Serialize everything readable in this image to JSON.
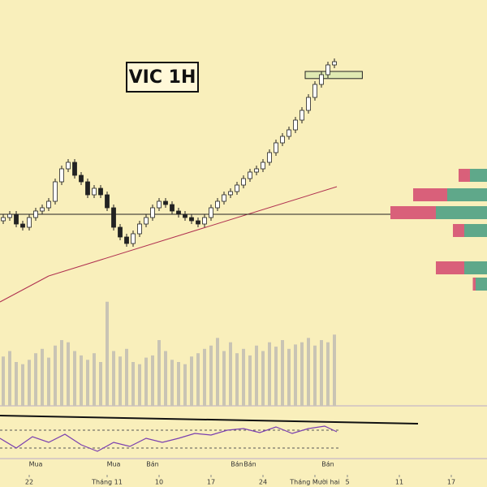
{
  "chart_data": {
    "type": "candlestick",
    "title": "VIC 1H",
    "ylim": [
      0,
      100
    ],
    "xlim": [
      -0.5,
      74.5
    ],
    "open": [
      32,
      33,
      34,
      31,
      30,
      33,
      35,
      36,
      38,
      44,
      48,
      50,
      46,
      44,
      40,
      42,
      40,
      36,
      30,
      27,
      25,
      28,
      31,
      33,
      36,
      38,
      37,
      35,
      34,
      33,
      32,
      31,
      33,
      36,
      38,
      40,
      41,
      43,
      45,
      47,
      48,
      50,
      53,
      56,
      58,
      60,
      63,
      66,
      70,
      74,
      77,
      80
    ],
    "high": [
      34,
      35,
      35,
      32,
      34,
      36,
      37,
      39,
      45,
      49,
      51,
      51,
      47,
      45,
      43,
      43,
      41,
      37,
      31,
      28,
      29,
      32,
      34,
      37,
      39,
      39,
      38,
      36,
      35,
      34,
      33,
      34,
      37,
      39,
      41,
      42,
      44,
      46,
      48,
      49,
      51,
      54,
      57,
      59,
      61,
      64,
      67,
      71,
      75,
      78,
      81,
      82
    ],
    "low": [
      31,
      32,
      30,
      29,
      29,
      32,
      34,
      35,
      37,
      43,
      47,
      45,
      43,
      39,
      39,
      39,
      35,
      29,
      26,
      24,
      24,
      27,
      30,
      32,
      35,
      36,
      34,
      33,
      32,
      31,
      30,
      30,
      32,
      35,
      37,
      39,
      40,
      42,
      44,
      46,
      47,
      49,
      52,
      55,
      57,
      59,
      62,
      65,
      69,
      73,
      76,
      79
    ],
    "close": [
      33,
      34,
      31,
      30,
      33,
      35,
      36,
      38,
      44,
      48,
      50,
      46,
      44,
      40,
      42,
      40,
      36,
      30,
      27,
      25,
      28,
      31,
      33,
      36,
      38,
      37,
      35,
      34,
      33,
      32,
      31,
      33,
      36,
      38,
      40,
      41,
      43,
      45,
      47,
      48,
      50,
      53,
      56,
      58,
      60,
      63,
      66,
      70,
      74,
      77,
      80,
      81
    ],
    "up_color": "#ffffff",
    "down_color": "#222222",
    "level": 34,
    "zone": [
      75.8,
      78
    ],
    "volume": [
      45,
      50,
      40,
      38,
      42,
      48,
      52,
      44,
      55,
      60,
      58,
      50,
      46,
      42,
      48,
      40,
      95,
      50,
      45,
      52,
      40,
      38,
      44,
      46,
      60,
      50,
      42,
      40,
      38,
      45,
      48,
      52,
      55,
      62,
      50,
      58,
      48,
      52,
      46,
      55,
      50,
      58,
      54,
      60,
      52,
      56,
      58,
      62,
      55,
      60,
      58,
      65
    ],
    "volume_color": "#c9c4b4",
    "volume_ylim": [
      0,
      100
    ],
    "profile": {
      "levels": [
        46,
        40,
        34.5,
        29,
        17.5,
        12.5
      ],
      "buy": [
        30,
        70,
        90,
        40,
        40,
        20
      ],
      "sell": [
        20,
        60,
        80,
        20,
        50,
        5
      ],
      "buy_color": "#5fa88a",
      "sell_color": "#d9607a"
    },
    "xticks": [
      {
        "value": 4,
        "label": "22"
      },
      {
        "value": 16,
        "label": "Tháng 11"
      },
      {
        "value": 24,
        "label": "10"
      },
      {
        "value": 32,
        "label": "17"
      },
      {
        "value": 40,
        "label": "24"
      },
      {
        "value": 48,
        "label": "Tháng Mười hai"
      },
      {
        "value": 53,
        "label": "5"
      },
      {
        "value": 61,
        "label": "11"
      },
      {
        "value": 69,
        "label": "17"
      }
    ],
    "annotations": [
      {
        "text": "Mua",
        "index": 5
      },
      {
        "text": "Mua",
        "index": 17
      },
      {
        "text": "Bán",
        "index": 23
      },
      {
        "text": "Bán",
        "index": 36
      },
      {
        "text": "Bán",
        "index": 38
      },
      {
        "text": "Bán",
        "index": 50
      }
    ]
  }
}
